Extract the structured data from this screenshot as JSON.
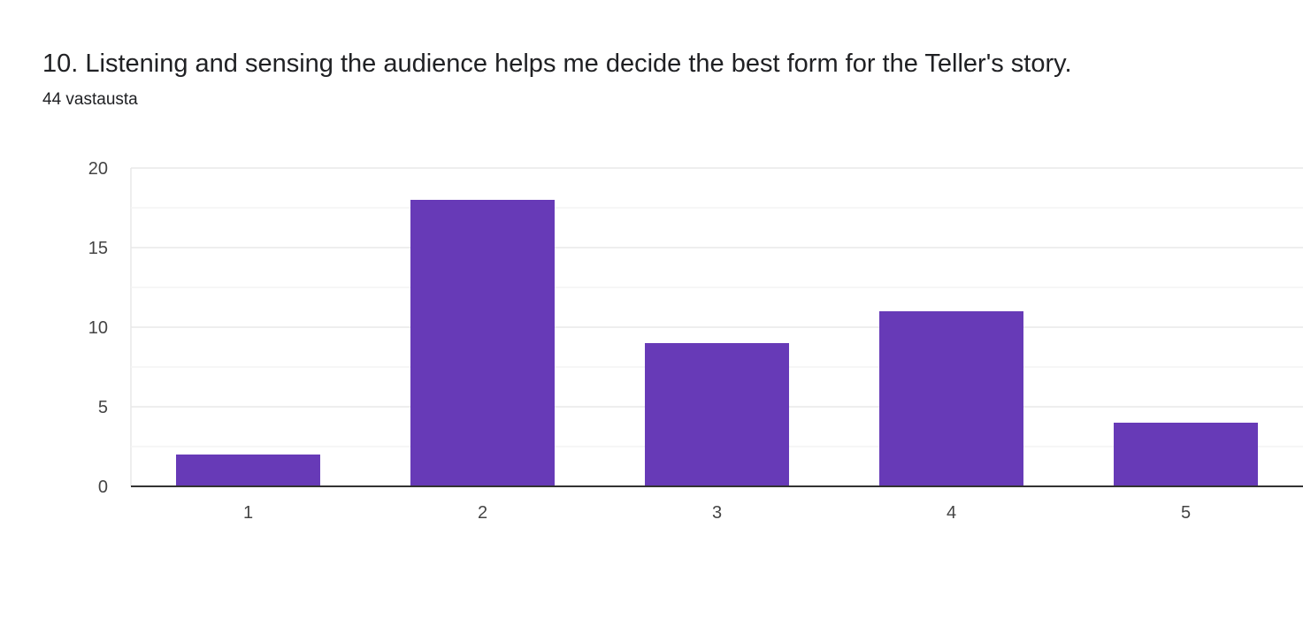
{
  "question": {
    "title": "10. Listening and sensing the audience helps me decide the best form for the Teller's story.",
    "response_count": "44 vastausta"
  },
  "colors": {
    "bar": "#673ab7",
    "gridline_major": "#e8e8e8",
    "gridline_minor": "#f3f3f3",
    "baseline": "#333333",
    "tick_text": "#444444"
  },
  "chart_data": {
    "type": "bar",
    "title": "10. Listening and sensing the audience helps me decide the best form for the Teller's story.",
    "categories": [
      "1",
      "2",
      "3",
      "4",
      "5"
    ],
    "values": [
      2,
      18,
      9,
      11,
      4
    ],
    "ylim": [
      0,
      20
    ],
    "yticks": [
      0,
      5,
      10,
      15,
      20
    ],
    "xlabel": "",
    "ylabel": "",
    "grid": true,
    "legend": "none"
  }
}
